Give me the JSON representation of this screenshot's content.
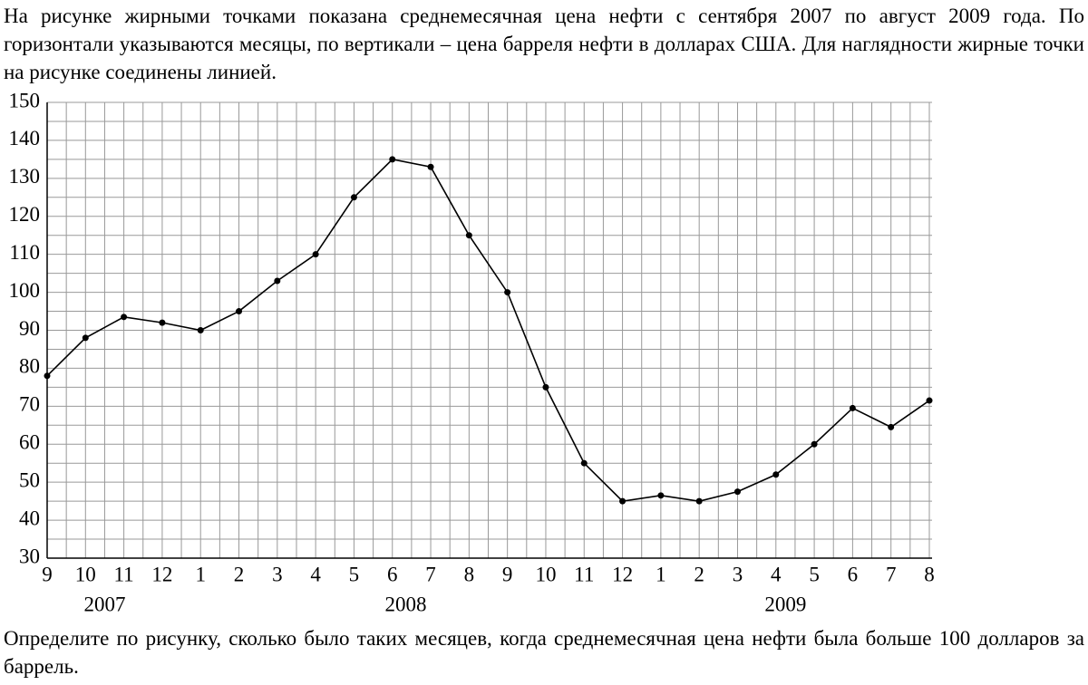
{
  "text_top": "На рисунке жирными точками показана среднемесячная цена нефти с сентября 2007 по август 2009 года. По горизонтали указываются месяцы, по вертикали – цена барреля нефти в долларах США. Для наглядности жирные точки на рисунке соединены линией.",
  "chart_data": {
    "type": "line",
    "categories": [
      "9",
      "10",
      "11",
      "12",
      "1",
      "2",
      "3",
      "4",
      "5",
      "6",
      "7",
      "8",
      "9",
      "10",
      "11",
      "12",
      "1",
      "2",
      "3",
      "4",
      "5",
      "6",
      "7",
      "8"
    ],
    "groups": [
      "2007",
      "2008",
      "2009"
    ],
    "values": [
      78,
      88,
      93.5,
      92,
      90,
      95,
      103,
      110,
      125,
      135,
      133,
      115,
      100,
      75,
      55,
      45,
      46.5,
      45,
      47.5,
      52,
      60,
      69.5,
      64.5,
      71.5
    ],
    "color": "#000000",
    "ylim": [
      30,
      150
    ],
    "yticks": [
      30,
      40,
      50,
      60,
      70,
      80,
      90,
      100,
      110,
      120,
      130,
      140,
      150
    ],
    "grid": true
  },
  "text_bottom": "Определите по рисунку, сколько было таких месяцев, когда среднемесячная цена нефти была больше 100 долларов за баррель."
}
